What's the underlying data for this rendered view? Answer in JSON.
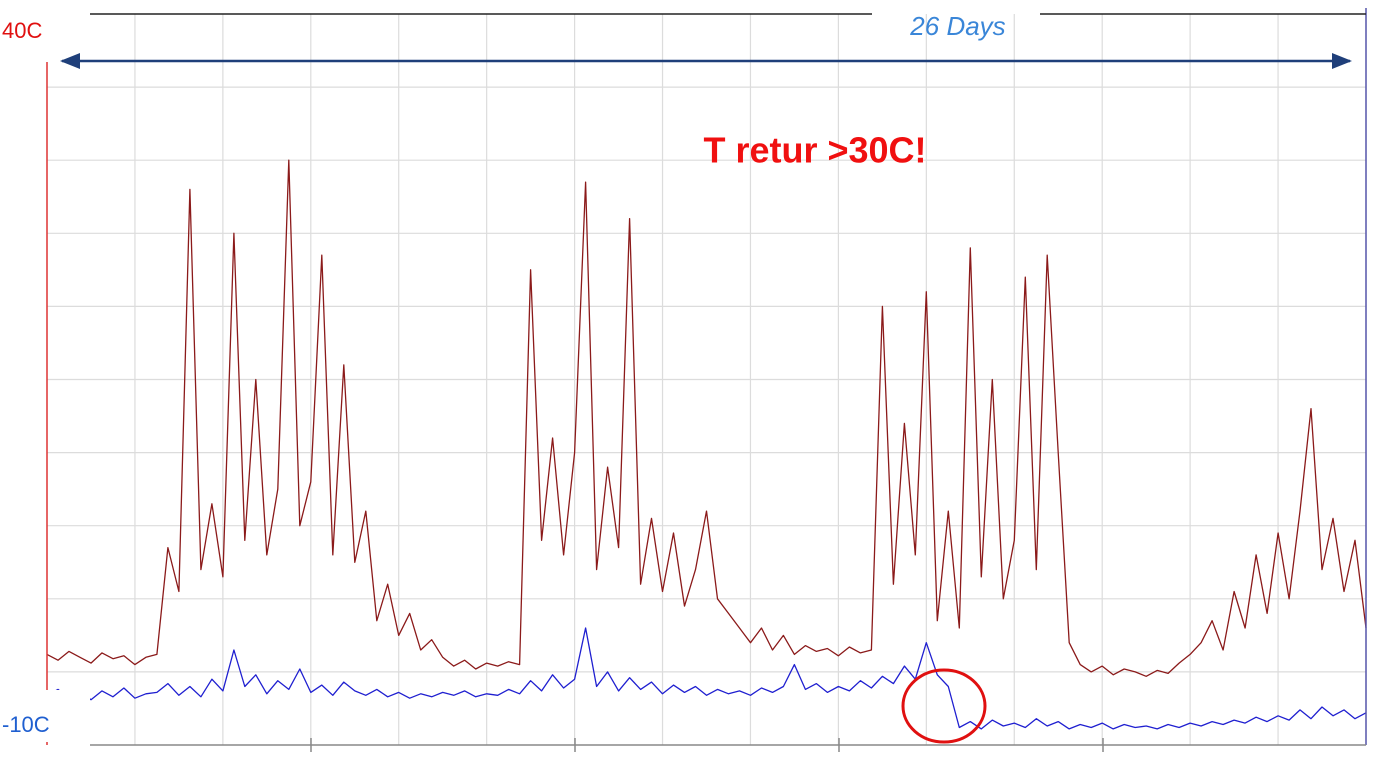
{
  "chart_data": {
    "type": "line",
    "annotations": {
      "span": "26 Days",
      "note": "T retur >30C!"
    },
    "ylim": [
      -10,
      40
    ],
    "yticks": [
      {
        "value": 40,
        "label": "40C"
      },
      {
        "value": -10,
        "label": "-10C"
      }
    ],
    "ygrid": [
      -5,
      0,
      5,
      10,
      15,
      20,
      25,
      30,
      35
    ],
    "xlim": [
      0,
      15
    ],
    "xgrid": [
      1,
      2,
      3,
      4,
      5,
      6,
      7,
      8,
      9,
      10,
      11,
      12,
      13,
      14
    ],
    "grid": true,
    "x": [
      0,
      0.125,
      0.25,
      0.375,
      0.5,
      0.625,
      0.75,
      0.875,
      1,
      1.125,
      1.25,
      1.375,
      1.5,
      1.625,
      1.75,
      1.875,
      2,
      2.125,
      2.25,
      2.375,
      2.5,
      2.625,
      2.75,
      2.875,
      3,
      3.125,
      3.25,
      3.375,
      3.5,
      3.625,
      3.75,
      3.875,
      4,
      4.125,
      4.25,
      4.375,
      4.5,
      4.625,
      4.75,
      4.875,
      5,
      5.125,
      5.25,
      5.375,
      5.5,
      5.625,
      5.75,
      5.875,
      6,
      6.125,
      6.25,
      6.375,
      6.5,
      6.625,
      6.75,
      6.875,
      7,
      7.125,
      7.25,
      7.375,
      7.5,
      7.625,
      7.75,
      7.875,
      8,
      8.125,
      8.25,
      8.375,
      8.5,
      8.625,
      8.75,
      8.875,
      9,
      9.125,
      9.25,
      9.375,
      9.5,
      9.625,
      9.75,
      9.875,
      10,
      10.125,
      10.25,
      10.375,
      10.5,
      10.625,
      10.75,
      10.875,
      11,
      11.125,
      11.25,
      11.375,
      11.5,
      11.625,
      11.75,
      11.875,
      12,
      12.125,
      12.25,
      12.375,
      12.5,
      12.625,
      12.75,
      12.875,
      13,
      13.125,
      13.25,
      13.375,
      13.5,
      13.625,
      13.75,
      13.875,
      14,
      14.125,
      14.25,
      14.375,
      14.5,
      14.625,
      14.75,
      14.875,
      15
    ],
    "series": [
      {
        "color": "#8b1a1a",
        "values": [
          -3.8,
          -4.2,
          -3.6,
          -4.0,
          -4.4,
          -3.7,
          -4.1,
          -3.9,
          -4.5,
          -4.0,
          -3.8,
          3.5,
          0.5,
          28,
          2.0,
          6.5,
          1.5,
          25,
          4.0,
          15,
          3.0,
          7.5,
          30,
          5.0,
          8.0,
          23.5,
          3.0,
          16,
          2.5,
          6.0,
          -1.5,
          1.0,
          -2.5,
          -1.0,
          -3.5,
          -2.8,
          -4.0,
          -4.6,
          -4.2,
          -4.8,
          -4.4,
          -4.6,
          -4.3,
          -4.5,
          22.5,
          4.0,
          11,
          3.0,
          10,
          28.5,
          2.0,
          9.0,
          3.5,
          26,
          1.0,
          5.5,
          0.5,
          4.5,
          -0.5,
          2.0,
          6.0,
          0.0,
          -1.0,
          -2.0,
          -3.0,
          -2.0,
          -3.5,
          -2.5,
          -3.8,
          -3.2,
          -3.6,
          -3.4,
          -3.9,
          -3.3,
          -3.7,
          -3.5,
          20,
          1.0,
          12,
          3.0,
          21,
          -1.5,
          6.0,
          -2.0,
          24,
          1.5,
          15,
          0.0,
          4.0,
          22,
          2.0,
          23.5,
          10,
          -3.0,
          -4.5,
          -5.0,
          -4.6,
          -5.2,
          -4.8,
          -5.0,
          -5.3,
          -4.9,
          -5.1,
          -4.4,
          -3.8,
          -3.0,
          -1.5,
          -3.5,
          0.5,
          -2.0,
          3.0,
          -1.0,
          4.5,
          0.0,
          6.0,
          13,
          2.0,
          5.5,
          0.5,
          4.0,
          -2.0
        ]
      },
      {
        "color": "#1f1fd0",
        "values": [
          -6.6,
          -6.2,
          -6.8,
          -6.4,
          -6.9,
          -6.3,
          -6.7,
          -6.1,
          -6.8,
          -6.5,
          -6.4,
          -5.8,
          -6.6,
          -6.0,
          -6.7,
          -5.5,
          -6.3,
          -3.5,
          -6.0,
          -5.2,
          -6.5,
          -5.6,
          -6.2,
          -4.8,
          -6.4,
          -5.9,
          -6.6,
          -5.7,
          -6.3,
          -6.6,
          -6.2,
          -6.7,
          -6.4,
          -6.8,
          -6.5,
          -6.7,
          -6.4,
          -6.6,
          -6.3,
          -6.7,
          -6.5,
          -6.6,
          -6.2,
          -6.5,
          -5.6,
          -6.3,
          -5.2,
          -6.1,
          -5.5,
          -2.0,
          -6.0,
          -5.0,
          -6.3,
          -5.4,
          -6.2,
          -5.7,
          -6.5,
          -5.9,
          -6.4,
          -6.0,
          -6.6,
          -6.2,
          -6.5,
          -6.3,
          -6.6,
          -6.1,
          -6.4,
          -6.0,
          -4.5,
          -6.2,
          -5.8,
          -6.4,
          -6.0,
          -6.3,
          -5.6,
          -6.1,
          -5.3,
          -5.8,
          -4.6,
          -5.5,
          -3.0,
          -5.2,
          -6.0,
          -8.8,
          -8.4,
          -8.9,
          -8.3,
          -8.7,
          -8.5,
          -8.8,
          -8.2,
          -8.7,
          -8.4,
          -8.9,
          -8.6,
          -8.8,
          -8.5,
          -8.9,
          -8.6,
          -8.8,
          -8.7,
          -8.9,
          -8.6,
          -8.8,
          -8.5,
          -8.7,
          -8.4,
          -8.6,
          -8.3,
          -8.5,
          -8.1,
          -8.4,
          -8.0,
          -8.3,
          -7.6,
          -8.2,
          -7.4,
          -8.0,
          -7.6,
          -8.2,
          -7.8
        ]
      }
    ]
  }
}
